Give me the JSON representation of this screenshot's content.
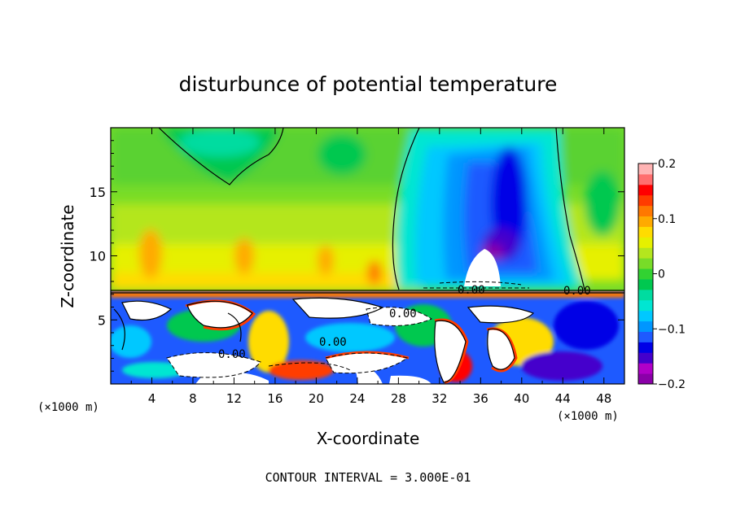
{
  "chart_data": {
    "type": "heatmap",
    "title": "disturbunce of potential temperature",
    "xlabel": "X-coordinate",
    "ylabel": "Z-coordinate",
    "x_unit_left": "(×1000 m)",
    "x_unit_right": "(×1000 m)",
    "xlim": [
      0,
      50
    ],
    "ylim": [
      0,
      20
    ],
    "x_ticks": [
      "4",
      "8",
      "12",
      "16",
      "20",
      "24",
      "28",
      "32",
      "36",
      "40",
      "44",
      "48"
    ],
    "x_tick_values": [
      4,
      8,
      12,
      16,
      20,
      24,
      28,
      32,
      36,
      40,
      44,
      48
    ],
    "y_ticks": [
      "5",
      "10",
      "15"
    ],
    "y_tick_values": [
      5,
      10,
      15
    ],
    "colorbar": {
      "ticks": [
        "0.2",
        "0.1",
        "0",
        "−0.1",
        "−0.2"
      ],
      "tick_values": [
        0.2,
        0.1,
        0,
        -0.1,
        -0.2
      ],
      "range": [
        -0.2,
        0.2
      ],
      "colors": [
        "#8a00a8",
        "#b000c8",
        "#4400cc",
        "#0000e6",
        "#1e5aff",
        "#0096ff",
        "#00c8ff",
        "#00e6d2",
        "#00dca0",
        "#00c850",
        "#32d232",
        "#78dc28",
        "#b4e61e",
        "#e6f000",
        "#ffdc00",
        "#ffaa00",
        "#ff7800",
        "#ff3c00",
        "#ff0000",
        "#ff6e6e",
        "#ffb4b4"
      ]
    },
    "contour_labels": [
      "0.00",
      "0.00",
      "0.00",
      "0.00",
      "0.00"
    ],
    "contour_interval_text": "CONTOUR INTERVAL = 3.000E-01"
  }
}
